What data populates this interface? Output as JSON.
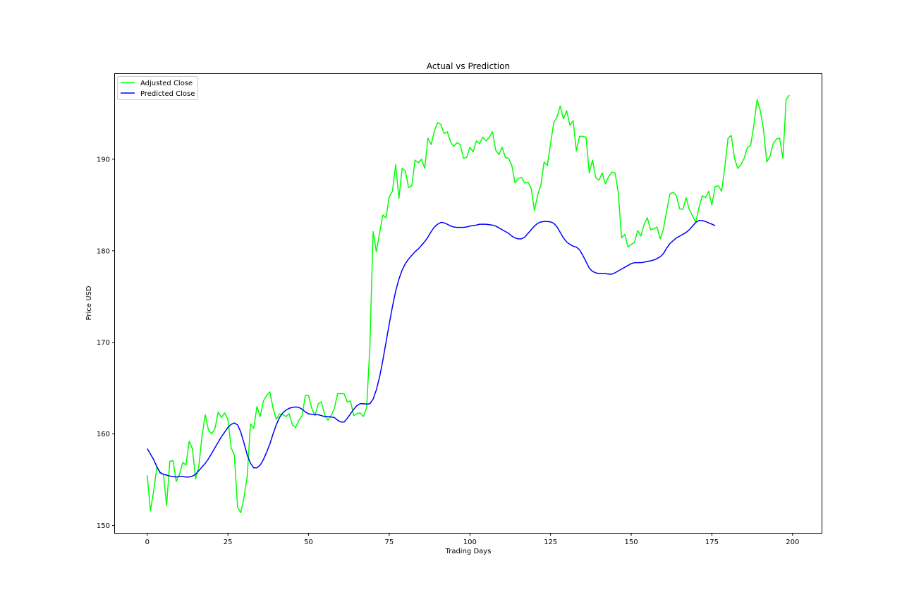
{
  "chart_data": {
    "type": "line",
    "title": "Actual vs Prediction",
    "xlabel": "Trading Days",
    "ylabel": "Price USD",
    "xlim": [
      -10,
      209
    ],
    "ylim": [
      149.2,
      199.3
    ],
    "xticks": [
      0,
      25,
      50,
      75,
      100,
      125,
      150,
      175,
      200
    ],
    "yticks": [
      150,
      160,
      170,
      180,
      190
    ],
    "grid": false,
    "legend_position": "top-left",
    "series": [
      {
        "name": "Adjusted Close",
        "color": "#00ff00",
        "values": [
          155.5,
          151.6,
          153.8,
          156.4,
          155.7,
          155.6,
          152.2,
          157.0,
          157.1,
          154.8,
          155.6,
          156.9,
          156.6,
          159.2,
          158.4,
          155.1,
          156.5,
          159.8,
          162.1,
          160.4,
          160.0,
          160.6,
          162.4,
          161.8,
          162.3,
          161.6,
          158.5,
          157.7,
          152.0,
          151.4,
          153.1,
          155.4,
          161.1,
          160.6,
          163.0,
          161.9,
          163.6,
          164.2,
          164.6,
          162.8,
          161.6,
          162.2,
          162.1,
          161.9,
          162.2,
          161.0,
          160.7,
          161.5,
          162.0,
          164.2,
          164.2,
          162.8,
          162.0,
          163.3,
          163.5,
          162.1,
          161.5,
          162.0,
          162.8,
          164.4,
          164.4,
          164.4,
          163.5,
          163.6,
          162.0,
          162.2,
          162.3,
          161.9,
          162.9,
          169.5,
          182.1,
          179.9,
          181.9,
          183.9,
          183.6,
          185.9,
          186.5,
          189.4,
          185.7,
          189.0,
          188.7,
          186.9,
          187.1,
          189.9,
          189.6,
          190.0,
          189.0,
          192.3,
          191.6,
          193.1,
          194.0,
          193.8,
          192.8,
          193.0,
          191.9,
          191.4,
          191.8,
          191.6,
          190.1,
          190.2,
          191.3,
          190.8,
          192.0,
          191.7,
          192.4,
          192.0,
          192.4,
          193.0,
          191.0,
          190.5,
          191.3,
          190.2,
          190.1,
          189.3,
          187.4,
          187.9,
          188.0,
          187.4,
          187.5,
          186.8,
          184.4,
          186.1,
          187.2,
          189.7,
          189.3,
          191.7,
          194.0,
          194.6,
          195.8,
          194.4,
          195.3,
          193.7,
          194.2,
          190.9,
          192.5,
          192.5,
          192.4,
          188.5,
          189.9,
          188.0,
          187.7,
          188.5,
          187.3,
          188.1,
          188.6,
          188.5,
          186.3,
          181.4,
          181.8,
          180.4,
          180.7,
          180.9,
          182.2,
          181.6,
          182.9,
          183.6,
          182.3,
          182.4,
          182.6,
          181.3,
          182.4,
          184.4,
          186.2,
          186.4,
          186.0,
          184.6,
          184.5,
          185.8,
          184.5,
          183.8,
          183.1,
          184.7,
          186.0,
          185.8,
          186.5,
          185.0,
          187.0,
          187.1,
          186.5,
          189.1,
          192.3,
          192.6,
          190.1,
          189.0,
          189.4,
          190.1,
          191.3,
          191.5,
          193.7,
          196.5,
          195.3,
          193.2,
          189.7,
          190.3,
          191.7,
          192.2,
          192.3,
          190.1,
          196.5,
          197.0
        ]
      },
      {
        "name": "Predicted Close",
        "color": "#0000ff",
        "values": [
          158.4,
          157.8,
          157.2,
          156.4,
          155.8,
          155.6,
          155.5,
          155.4,
          155.35,
          155.3,
          155.35,
          155.35,
          155.3,
          155.3,
          155.4,
          155.6,
          156.0,
          156.4,
          156.8,
          157.3,
          157.9,
          158.5,
          159.1,
          159.7,
          160.2,
          160.7,
          161.05,
          161.2,
          161.0,
          160.2,
          159.0,
          157.7,
          156.8,
          156.3,
          156.3,
          156.6,
          157.2,
          158.0,
          158.9,
          160.0,
          161.0,
          161.8,
          162.3,
          162.6,
          162.8,
          162.9,
          162.95,
          162.9,
          162.7,
          162.4,
          162.2,
          162.15,
          162.1,
          162.1,
          162.0,
          161.9,
          161.9,
          161.85,
          161.8,
          161.5,
          161.3,
          161.3,
          161.7,
          162.2,
          162.7,
          163.1,
          163.3,
          163.3,
          163.25,
          163.3,
          163.8,
          164.8,
          166.2,
          168.0,
          170.0,
          172.0,
          173.9,
          175.6,
          176.9,
          177.9,
          178.6,
          179.1,
          179.5,
          179.9,
          180.2,
          180.6,
          181.0,
          181.5,
          182.1,
          182.6,
          182.9,
          183.1,
          183.05,
          182.9,
          182.7,
          182.6,
          182.55,
          182.55,
          182.55,
          182.6,
          182.7,
          182.75,
          182.8,
          182.9,
          182.9,
          182.9,
          182.85,
          182.8,
          182.7,
          182.5,
          182.3,
          182.1,
          181.9,
          181.6,
          181.4,
          181.3,
          181.3,
          181.5,
          181.9,
          182.3,
          182.7,
          183.0,
          183.15,
          183.2,
          183.2,
          183.15,
          183.0,
          182.6,
          182.0,
          181.4,
          180.95,
          180.7,
          180.5,
          180.4,
          180.1,
          179.5,
          178.8,
          178.1,
          177.75,
          177.6,
          177.5,
          177.5,
          177.5,
          177.45,
          177.45,
          177.6,
          177.8,
          178.0,
          178.2,
          178.4,
          178.6,
          178.7,
          178.7,
          178.7,
          178.75,
          178.85,
          178.9,
          179.0,
          179.15,
          179.35,
          179.7,
          180.3,
          180.8,
          181.1,
          181.4,
          181.6,
          181.8,
          182.0,
          182.3,
          182.7,
          183.1,
          183.3,
          183.3,
          183.2,
          183.05,
          182.9,
          182.75
        ]
      }
    ]
  }
}
